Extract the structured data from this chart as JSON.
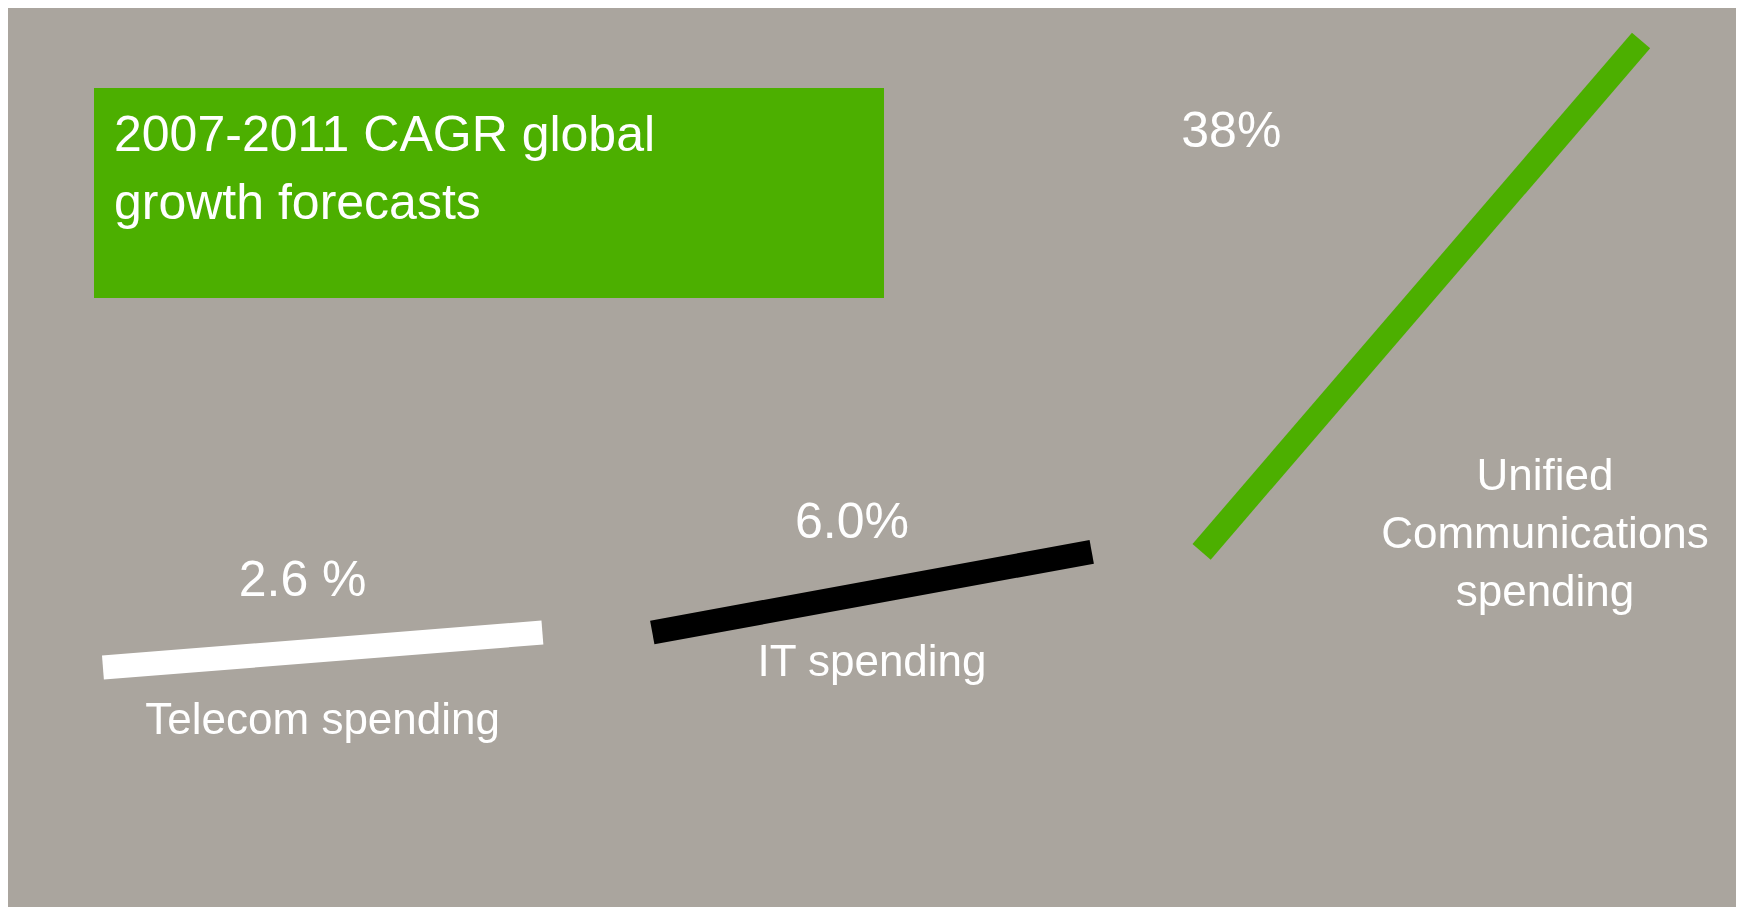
{
  "chart_data": {
    "type": "other",
    "title": "2007-2011 CAGR global growth forecasts",
    "categories": [
      "Telecom spending",
      "IT spending",
      "Unified Communications spending"
    ],
    "values": [
      2.6,
      6.0,
      38
    ],
    "value_labels": [
      "2.6 %",
      "6.0%",
      "38%"
    ],
    "colors": [
      "#ffffff",
      "#000000",
      "#4caf00"
    ]
  }
}
